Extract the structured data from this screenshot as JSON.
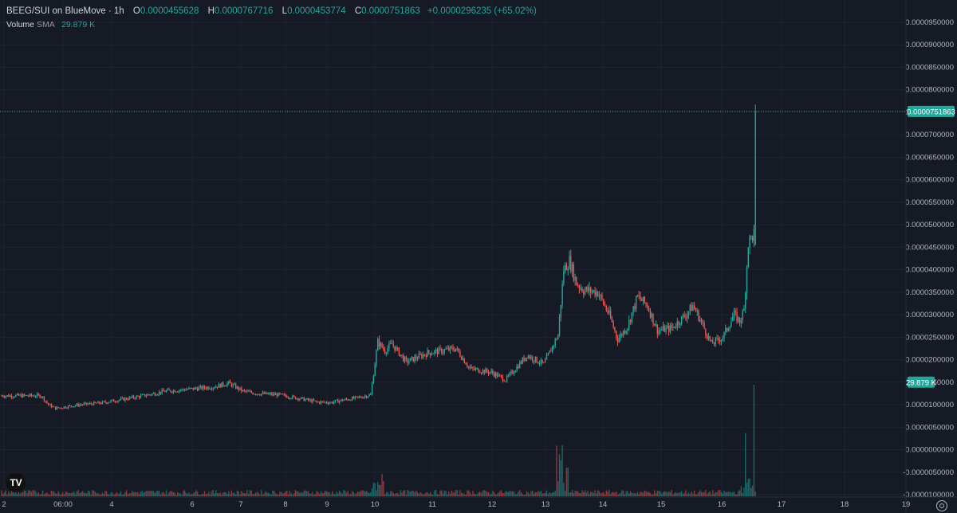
{
  "legend": {
    "symbol": "BEEG/SUI on BlueMove · 1h",
    "o_label": "O",
    "o": "0.0000455628",
    "h_label": "H",
    "h": "0.0000767716",
    "l_label": "L",
    "l": "0.0000453774",
    "c_label": "C",
    "c": "0.0000751863",
    "change": "+0.0000296235 (+65.02%)"
  },
  "volume_legend": {
    "label": "Volume",
    "sma_label": "SMA",
    "value": "29.879 K"
  },
  "colors": {
    "up": "#26a69a",
    "down": "#ef5350",
    "background": "#161a25",
    "grid": "#1f2330",
    "text": "#b2b5be"
  },
  "icons": {
    "logo": "tradingview-logo-icon",
    "settings": "settings-icon"
  },
  "chart_data": {
    "type": "candlestick",
    "price_axis": {
      "range": [
        -1e-05,
        1e-05
      ],
      "ticks": [
        "0.0000950000",
        "0.0000900000",
        "0.0000850000",
        "0.0000800000",
        "0.0000750000",
        "0.0000700000",
        "0.0000650000",
        "0.0000600000",
        "0.0000550000",
        "0.0000500000",
        "0.0000450000",
        "0.0000400000",
        "0.0000350000",
        "0.0000300000",
        "0.0000250000",
        "0.0000200000",
        "0.0000150000",
        "0.0000100000",
        "0.0000050000",
        "0.0000000000",
        "-0.0000050000",
        "-0.0000100000"
      ],
      "tick_values": [
        9.5e-05,
        9e-05,
        8.5e-05,
        8e-05,
        7.5e-05,
        7e-05,
        6.5e-05,
        6e-05,
        5.5e-05,
        5e-05,
        4.5e-05,
        4e-05,
        3.5e-05,
        3e-05,
        2.5e-05,
        2e-05,
        1.5e-05,
        1e-05,
        5e-06,
        0,
        -5e-06,
        -1e-05
      ],
      "last_price_label": "0.0000751863",
      "last_price": 7.51863e-05,
      "volume_label": "29.879 K",
      "volume_label_value": 1.5e-05
    },
    "time_axis": {
      "labels": [
        "2",
        "06:00",
        "4",
        "6",
        "7",
        "8",
        "9",
        "10",
        "11",
        "12",
        "13",
        "14",
        "15",
        "16",
        "17",
        "18",
        "19"
      ]
    },
    "series_anchors": [
      [
        0,
        1.2e-05
      ],
      [
        10,
        1.2e-05
      ],
      [
        20,
        1.2e-05
      ],
      [
        28,
        1.2e-05
      ],
      [
        33,
        1e-05
      ],
      [
        38,
        9.2e-06
      ],
      [
        55,
        1e-05
      ],
      [
        70,
        1.04e-05
      ],
      [
        85,
        1.12e-05
      ],
      [
        100,
        1.2e-05
      ],
      [
        115,
        1.3e-05
      ],
      [
        130,
        1.34e-05
      ],
      [
        150,
        1.4e-05
      ],
      [
        160,
        1.48e-05
      ],
      [
        170,
        1.3e-05
      ],
      [
        180,
        1.25e-05
      ],
      [
        195,
        1.22e-05
      ],
      [
        210,
        1.14e-05
      ],
      [
        222,
        1.06e-05
      ],
      [
        232,
        1.05e-05
      ],
      [
        240,
        1.1e-05
      ],
      [
        250,
        1.15e-05
      ],
      [
        260,
        1.22e-05
      ],
      [
        265,
        2.4e-05
      ],
      [
        270,
        2.2e-05
      ],
      [
        275,
        2.35e-05
      ],
      [
        285,
        1.95e-05
      ],
      [
        300,
        2.15e-05
      ],
      [
        310,
        2.2e-05
      ],
      [
        320,
        2.25e-05
      ],
      [
        330,
        1.8e-05
      ],
      [
        345,
        1.72e-05
      ],
      [
        355,
        1.55e-05
      ],
      [
        362,
        1.8e-05
      ],
      [
        370,
        2.1e-05
      ],
      [
        382,
        1.9e-05
      ],
      [
        392,
        2.55e-05
      ],
      [
        396,
        4e-05
      ],
      [
        400,
        4.2e-05
      ],
      [
        405,
        3.7e-05
      ],
      [
        410,
        3.55e-05
      ],
      [
        420,
        3.5e-05
      ],
      [
        428,
        3e-05
      ],
      [
        434,
        2.45e-05
      ],
      [
        441,
        2.75e-05
      ],
      [
        448,
        3.4e-05
      ],
      [
        455,
        3.2e-05
      ],
      [
        462,
        2.65e-05
      ],
      [
        472,
        2.7e-05
      ],
      [
        482,
        3e-05
      ],
      [
        487,
        3.2e-05
      ],
      [
        492,
        2.9e-05
      ],
      [
        500,
        2.35e-05
      ],
      [
        508,
        2.5e-05
      ],
      [
        516,
        3e-05
      ],
      [
        520,
        2.85e-05
      ],
      [
        523,
        3.1e-05
      ],
      [
        526,
        4.6e-05
      ],
      [
        530,
        4.8e-05
      ],
      [
        531,
        7.51863e-05
      ]
    ],
    "bar_count": 532,
    "volume": {
      "spikes": [
        {
          "index": 264,
          "value": 8e-07
        },
        {
          "index": 396,
          "value": 1.8e-06
        },
        {
          "index": 524,
          "value": 8.5e-06
        },
        {
          "index": 530,
          "value": 1.5e-05
        }
      ]
    },
    "last_candle": {
      "o": 4.55628e-05,
      "h": 7.67716e-05,
      "l": 4.53774e-05,
      "c": 7.51863e-05
    }
  }
}
